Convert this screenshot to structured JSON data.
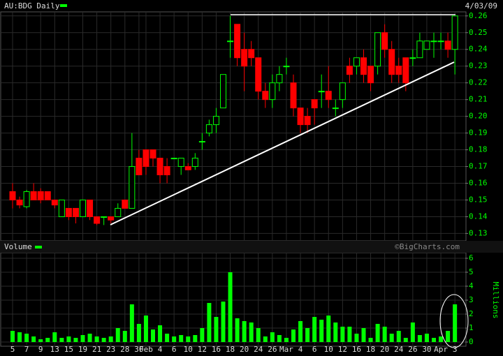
{
  "chart_data": [
    {
      "type": "candlestick",
      "title": "AU:BDG Daily",
      "date": "4/03/09",
      "up_color": "#00ff00",
      "down_color": "#ff0000",
      "open": [
        0.155,
        0.15,
        0.146,
        0.155,
        0.155,
        0.155,
        0.15,
        0.14,
        0.145,
        0.145,
        0.14,
        0.15,
        0.14,
        0.14,
        0.14,
        0.14,
        0.15,
        0.145,
        0.175,
        0.18,
        0.18,
        0.175,
        0.17,
        0.175,
        0.17,
        0.17,
        0.17,
        0.185,
        0.19,
        0.195,
        0.205,
        0.245,
        0.255,
        0.24,
        0.24,
        0.235,
        0.215,
        0.21,
        0.22,
        0.23,
        0.22,
        0.205,
        0.2,
        0.21,
        0.215,
        0.215,
        0.205,
        0.21,
        0.23,
        0.23,
        0.235,
        0.23,
        0.23,
        0.25,
        0.24,
        0.23,
        0.235,
        0.235,
        0.235,
        0.24,
        0.245,
        0.245,
        0.245,
        0.24
      ],
      "high": [
        0.16,
        0.152,
        0.156,
        0.16,
        0.157,
        0.155,
        0.15,
        0.15,
        0.145,
        0.145,
        0.15,
        0.15,
        0.14,
        0.14,
        0.14,
        0.148,
        0.15,
        0.19,
        0.18,
        0.18,
        0.18,
        0.175,
        0.175,
        0.175,
        0.175,
        0.172,
        0.178,
        0.19,
        0.198,
        0.205,
        0.225,
        0.26,
        0.255,
        0.25,
        0.245,
        0.235,
        0.22,
        0.225,
        0.23,
        0.235,
        0.225,
        0.205,
        0.205,
        0.21,
        0.225,
        0.23,
        0.21,
        0.22,
        0.235,
        0.235,
        0.24,
        0.23,
        0.25,
        0.255,
        0.245,
        0.235,
        0.235,
        0.24,
        0.25,
        0.245,
        0.25,
        0.25,
        0.25,
        0.26
      ],
      "low": [
        0.145,
        0.145,
        0.145,
        0.15,
        0.148,
        0.15,
        0.145,
        0.14,
        0.138,
        0.136,
        0.14,
        0.138,
        0.135,
        0.135,
        0.136,
        0.14,
        0.145,
        0.145,
        0.165,
        0.165,
        0.17,
        0.16,
        0.16,
        0.175,
        0.165,
        0.168,
        0.168,
        0.18,
        0.188,
        0.19,
        0.205,
        0.235,
        0.23,
        0.215,
        0.23,
        0.21,
        0.205,
        0.205,
        0.215,
        0.225,
        0.2,
        0.19,
        0.19,
        0.195,
        0.205,
        0.205,
        0.2,
        0.205,
        0.22,
        0.225,
        0.22,
        0.215,
        0.225,
        0.235,
        0.22,
        0.22,
        0.215,
        0.23,
        0.235,
        0.24,
        0.235,
        0.24,
        0.235,
        0.225
      ],
      "close": [
        0.15,
        0.147,
        0.155,
        0.15,
        0.15,
        0.15,
        0.147,
        0.15,
        0.14,
        0.14,
        0.15,
        0.14,
        0.136,
        0.14,
        0.138,
        0.145,
        0.145,
        0.17,
        0.165,
        0.17,
        0.175,
        0.165,
        0.165,
        0.175,
        0.175,
        0.168,
        0.175,
        0.185,
        0.195,
        0.2,
        0.225,
        0.245,
        0.235,
        0.23,
        0.235,
        0.215,
        0.21,
        0.22,
        0.225,
        0.23,
        0.205,
        0.195,
        0.195,
        0.205,
        0.215,
        0.21,
        0.205,
        0.22,
        0.225,
        0.235,
        0.225,
        0.22,
        0.25,
        0.24,
        0.225,
        0.225,
        0.22,
        0.235,
        0.245,
        0.245,
        0.245,
        0.245,
        0.24,
        0.26
      ],
      "ylim": [
        0.126,
        0.262
      ],
      "yticks": [
        0.13,
        0.14,
        0.15,
        0.16,
        0.17,
        0.18,
        0.19,
        {
          "value": 0.2,
          "label": "0.20"
        },
        0.21,
        0.22,
        0.23,
        0.24,
        0.25,
        0.26
      ],
      "grid": true
    },
    {
      "type": "bar",
      "title": "Volume",
      "source": "©BigCharts.com",
      "y_label": "Millions",
      "color": "#00ff00",
      "categories": [
        "5",
        null,
        "7",
        null,
        "9",
        null,
        "13",
        null,
        "15",
        null,
        "19",
        null,
        "21",
        null,
        "23",
        null,
        "28",
        null,
        "30",
        "Feb",
        null,
        "4",
        null,
        "6",
        null,
        "10",
        null,
        "12",
        null,
        "16",
        null,
        "18",
        null,
        "20",
        null,
        "24",
        null,
        "26",
        null,
        "Mar",
        null,
        "4",
        null,
        "6",
        null,
        "10",
        null,
        "12",
        null,
        "16",
        null,
        "18",
        null,
        "20",
        null,
        "24",
        null,
        "26",
        null,
        "30",
        null,
        "Apr",
        null,
        "3"
      ],
      "values": [
        0.8,
        0.7,
        0.6,
        0.4,
        0.2,
        0.3,
        0.7,
        0.3,
        0.4,
        0.3,
        0.5,
        0.6,
        0.4,
        0.3,
        0.4,
        1.0,
        0.8,
        2.7,
        1.3,
        1.9,
        0.9,
        1.2,
        0.6,
        0.4,
        0.5,
        0.4,
        0.5,
        1.0,
        2.8,
        1.8,
        2.9,
        5.0,
        1.7,
        1.5,
        1.4,
        1.0,
        0.4,
        0.7,
        0.5,
        0.3,
        0.9,
        1.5,
        1.0,
        1.8,
        1.6,
        1.9,
        1.4,
        1.1,
        1.1,
        0.6,
        1.0,
        0.3,
        1.3,
        1.1,
        0.6,
        0.8,
        0.3,
        1.4,
        0.5,
        0.6,
        0.3,
        0.4,
        0.8,
        2.7
      ],
      "ylim": [
        0,
        6.3
      ],
      "yticks": [
        0,
        1,
        2,
        3,
        4,
        5,
        6
      ],
      "grid": true
    }
  ]
}
